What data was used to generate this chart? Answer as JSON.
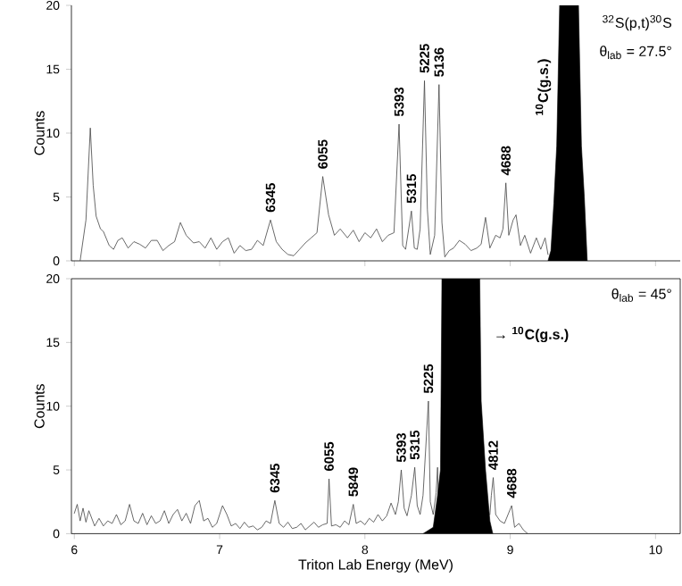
{
  "chart_data": [
    {
      "type": "line",
      "ylabel": "Counts",
      "xlim": [
        5.98,
        10.17
      ],
      "ylim": [
        0,
        20
      ],
      "xticks": [
        6,
        7,
        8,
        9,
        10
      ],
      "yticks": [
        0,
        5,
        10,
        15,
        20
      ],
      "tick_labels": "y",
      "series": [
        {
          "color": "#444444",
          "x": [
            6.04,
            6.08,
            6.11,
            6.13,
            6.15,
            6.18,
            6.2,
            6.24,
            6.27,
            6.3,
            6.33,
            6.37,
            6.41,
            6.45,
            6.49,
            6.53,
            6.57,
            6.61,
            6.65,
            6.69,
            6.73,
            6.77,
            6.82,
            6.86,
            6.9,
            6.94,
            6.98,
            7.02,
            7.06,
            7.1,
            7.14,
            7.18,
            7.22,
            7.26,
            7.3,
            7.35,
            7.39,
            7.43,
            7.47,
            7.51,
            7.55,
            7.59,
            7.63,
            7.67,
            7.71,
            7.75,
            7.79,
            7.83,
            7.88,
            7.92,
            7.96,
            8.0,
            8.04,
            8.08,
            8.12,
            8.16,
            8.2,
            8.235,
            8.26,
            8.28,
            8.32,
            8.34,
            8.36,
            8.38,
            8.41,
            8.43,
            8.45,
            8.48,
            8.51,
            8.53,
            8.55,
            8.58,
            8.61,
            8.65,
            8.69,
            8.73,
            8.77,
            8.8,
            8.83,
            8.86,
            8.9,
            8.93,
            8.95,
            8.97,
            8.99,
            9.02,
            9.04,
            9.07,
            9.1,
            9.14,
            9.18,
            9.21,
            9.24,
            9.26
          ],
          "values": [
            0,
            3.2,
            10.4,
            5.9,
            3.5,
            2.5,
            2.3,
            1.2,
            0.9,
            1.6,
            1.8,
            1.0,
            1.5,
            1.3,
            1.0,
            1.6,
            1.6,
            0.8,
            1.2,
            1.5,
            3.0,
            2.0,
            1.4,
            1.5,
            1.0,
            1.8,
            0.9,
            1.5,
            1.8,
            0.6,
            1.2,
            0.8,
            0.9,
            1.6,
            1.2,
            3.2,
            1.5,
            0.9,
            0.5,
            0.4,
            0.9,
            1.4,
            1.8,
            2.2,
            6.6,
            3.6,
            2.0,
            2.5,
            1.8,
            2.4,
            1.5,
            2.2,
            1.8,
            2.5,
            1.5,
            2.0,
            2.2,
            10.7,
            1.2,
            0.9,
            3.9,
            1.0,
            0.9,
            2.5,
            14.1,
            4.0,
            0.5,
            2.0,
            13.8,
            3.0,
            0.3,
            0.8,
            1.0,
            1.6,
            1.3,
            0.8,
            1.0,
            1.3,
            3.4,
            1.0,
            2.0,
            1.8,
            2.5,
            6.1,
            2.0,
            3.2,
            3.6,
            1.2,
            2.0,
            0.6,
            1.8,
            0.9,
            1.8,
            0.5
          ]
        },
        {
          "type": "area",
          "color": "#000000",
          "x": [
            9.26,
            9.28,
            9.3,
            9.32,
            9.34,
            9.47,
            9.49,
            9.51,
            9.53
          ],
          "values": [
            0,
            0.8,
            4.5,
            9.0,
            20,
            20,
            9.0,
            5.0,
            0
          ]
        }
      ],
      "annotations": [
        {
          "text": "6345",
          "x": 7.35,
          "y": 3.2
        },
        {
          "text": "6055",
          "x": 7.71,
          "y": 6.6
        },
        {
          "text": "5393",
          "x": 8.235,
          "y": 10.7
        },
        {
          "text": "5315",
          "x": 8.32,
          "y": 3.9
        },
        {
          "text": "5225",
          "x": 8.41,
          "y": 14.1
        },
        {
          "text": "5136",
          "x": 8.51,
          "y": 13.8
        },
        {
          "text": "4688",
          "x": 8.97,
          "y": 6.1
        },
        "$^{10}$C(g.s.)",
        "$^{32}$S(p,t)$^{30}$S",
        "θ$_{lab}$ = 27.5°"
      ]
    },
    {
      "type": "line",
      "ylabel": "Counts",
      "xlabel": "Triton Lab Energy (MeV)",
      "xlim": [
        5.98,
        10.17
      ],
      "ylim": [
        0,
        20
      ],
      "xticks": [
        6,
        7,
        8,
        9,
        10
      ],
      "yticks": [
        0,
        5,
        10,
        15,
        20
      ],
      "series": [
        {
          "color": "#444444",
          "x": [
            6.0,
            6.02,
            6.04,
            6.06,
            6.08,
            6.1,
            6.12,
            6.14,
            6.17,
            6.2,
            6.23,
            6.26,
            6.29,
            6.32,
            6.35,
            6.38,
            6.41,
            6.44,
            6.47,
            6.5,
            6.53,
            6.56,
            6.59,
            6.62,
            6.65,
            6.68,
            6.71,
            6.74,
            6.77,
            6.8,
            6.83,
            6.86,
            6.89,
            6.92,
            6.95,
            6.98,
            7.02,
            7.05,
            7.08,
            7.11,
            7.14,
            7.17,
            7.2,
            7.23,
            7.26,
            7.29,
            7.32,
            7.35,
            7.38,
            7.41,
            7.44,
            7.47,
            7.5,
            7.53,
            7.56,
            7.59,
            7.62,
            7.65,
            7.68,
            7.71,
            7.74,
            7.753,
            7.77,
            7.8,
            7.83,
            7.86,
            7.89,
            7.92,
            7.94,
            7.97,
            8.0,
            8.03,
            8.06,
            8.09,
            8.12,
            8.15,
            8.18,
            8.21,
            8.23,
            8.25,
            8.27,
            8.29,
            8.32,
            8.343,
            8.36,
            8.38,
            8.4,
            8.437,
            8.45,
            8.47,
            8.49,
            8.5,
            8.51,
            8.7,
            8.86,
            8.87,
            8.883,
            8.9,
            8.93,
            8.96,
            9.01,
            9.03,
            9.06,
            9.09,
            9.12
          ],
          "values": [
            1.6,
            2.3,
            1.0,
            2.0,
            0.9,
            1.8,
            1.2,
            0.6,
            1.2,
            0.6,
            1.0,
            0.8,
            1.5,
            0.7,
            1.0,
            2.3,
            1.0,
            0.8,
            1.6,
            0.7,
            1.4,
            0.8,
            1.0,
            1.8,
            0.8,
            1.5,
            1.9,
            1.0,
            1.6,
            0.8,
            2.2,
            2.6,
            1.0,
            1.2,
            0.5,
            0.8,
            2.2,
            1.5,
            0.6,
            0.8,
            0.4,
            0.9,
            0.5,
            0.6,
            0.3,
            0.5,
            1.0,
            0.8,
            2.6,
            0.8,
            0.5,
            0.9,
            0.4,
            0.5,
            0.8,
            0.3,
            0.6,
            0.9,
            0.5,
            0.7,
            0.8,
            4.3,
            0.6,
            0.7,
            0.5,
            1.0,
            0.7,
            2.3,
            0.8,
            1.0,
            0.7,
            1.2,
            0.9,
            1.5,
            1.0,
            1.4,
            2.4,
            1.5,
            2.5,
            5.0,
            2.0,
            1.4,
            3.0,
            5.2,
            2.2,
            1.5,
            3.0,
            10.4,
            2.5,
            1.5,
            3.2,
            5.2,
            0,
            null,
            1.5,
            3.0,
            4.4,
            1.5,
            1.0,
            0.8,
            2.2,
            0.5,
            0.8,
            0.3,
            0
          ]
        },
        {
          "type": "area",
          "color": "#000000",
          "x": [
            8.4,
            8.47,
            8.5,
            8.52,
            8.53,
            8.79,
            8.8,
            8.83,
            8.86,
            8.88
          ],
          "values": [
            0,
            0.5,
            3.0,
            5.0,
            20,
            20,
            10.4,
            5.0,
            1.0,
            0
          ]
        }
      ],
      "annotations": [
        {
          "text": "6345",
          "x": 7.38,
          "y": 2.6
        },
        {
          "text": "6055",
          "x": 7.753,
          "y": 4.3
        },
        {
          "text": "5849",
          "x": 7.92,
          "y": 2.3
        },
        {
          "text": "5393",
          "x": 8.25,
          "y": 5.0
        },
        {
          "text": "5315",
          "x": 8.343,
          "y": 5.2
        },
        {
          "text": "5225",
          "x": 8.437,
          "y": 10.4
        },
        {
          "text": "4812",
          "x": 8.883,
          "y": 4.4
        },
        {
          "text": "4688",
          "x": 9.01,
          "y": 2.2
        },
        "θ$_{lab}$ = 45°",
        "→ $^{10}$C(g.s.)"
      ]
    }
  ]
}
